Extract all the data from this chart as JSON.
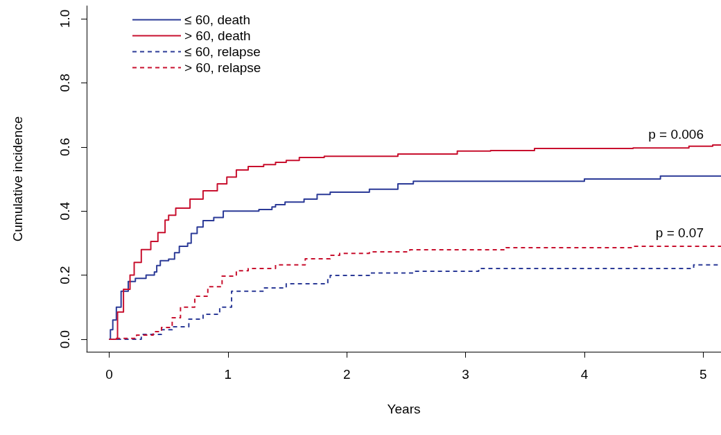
{
  "chart_data": {
    "type": "step",
    "xlabel": "Years",
    "ylabel": "Cumulative incidence",
    "xlim": [
      -0.19,
      5.15
    ],
    "ylim": [
      -0.04,
      1.04
    ],
    "xticks": [
      0,
      1,
      2,
      3,
      4,
      5
    ],
    "yticks": [
      {
        "value": 0,
        "label": "0.0"
      },
      {
        "value": 0.2,
        "label": "0.2"
      },
      {
        "value": 0.4,
        "label": "0.4"
      },
      {
        "value": 0.6,
        "label": "0.6"
      },
      {
        "value": 0.8,
        "label": "0.8"
      },
      {
        "value": 1,
        "label": "1.0"
      }
    ],
    "grid": false,
    "legend": "top left",
    "marker": "none",
    "series": [
      {
        "name": "≤ 60, death",
        "color": "#2b3a97",
        "line_style": "solid",
        "x": [
          0,
          0.01,
          0.03,
          0.06,
          0.1,
          0.16,
          0.22,
          0.31,
          0.38,
          0.4,
          0.43,
          0.5,
          0.55,
          0.59,
          0.66,
          0.69,
          0.74,
          0.79,
          0.88,
          0.96,
          1.26,
          1.37,
          1.4,
          1.48,
          1.64,
          1.75,
          1.86,
          2.19,
          2.43,
          2.56,
          4.0,
          4.64,
          5.15
        ],
        "values": [
          0,
          0.03,
          0.06,
          0.1,
          0.15,
          0.18,
          0.19,
          0.2,
          0.21,
          0.23,
          0.245,
          0.25,
          0.27,
          0.29,
          0.3,
          0.33,
          0.35,
          0.37,
          0.38,
          0.4,
          0.405,
          0.413,
          0.42,
          0.428,
          0.437,
          0.452,
          0.459,
          0.468,
          0.485,
          0.493,
          0.5,
          0.509,
          0.509
        ]
      },
      {
        "name": "> 60, death",
        "color": "#c8102e",
        "line_style": "solid",
        "x": [
          0,
          0.07,
          0.12,
          0.175,
          0.21,
          0.27,
          0.35,
          0.41,
          0.47,
          0.5,
          0.56,
          0.68,
          0.79,
          0.91,
          0.99,
          1.07,
          1.17,
          1.3,
          1.4,
          1.49,
          1.6,
          1.81,
          2.43,
          2.93,
          3.21,
          3.58,
          4.41,
          4.88,
          5.08,
          5.15
        ],
        "values": [
          0,
          0.085,
          0.156,
          0.2,
          0.24,
          0.28,
          0.305,
          0.333,
          0.372,
          0.387,
          0.409,
          0.437,
          0.463,
          0.485,
          0.506,
          0.528,
          0.539,
          0.545,
          0.552,
          0.558,
          0.567,
          0.571,
          0.578,
          0.587,
          0.589,
          0.595,
          0.597,
          0.602,
          0.606,
          0.606
        ]
      },
      {
        "name": "≤ 60, relapse",
        "color": "#2b3a97",
        "line_style": "dashed",
        "x": [
          0,
          0.1,
          0.27,
          0.44,
          0.53,
          0.67,
          0.79,
          0.93,
          1.03,
          1.3,
          1.49,
          1.84,
          1.86,
          2.19,
          2.57,
          3.11,
          4.92,
          5.15
        ],
        "values": [
          0,
          0,
          0.015,
          0.03,
          0.039,
          0.063,
          0.078,
          0.1,
          0.15,
          0.16,
          0.173,
          0.188,
          0.199,
          0.207,
          0.212,
          0.221,
          0.232,
          0.232
        ]
      },
      {
        "name": "> 60, relapse",
        "color": "#c8102e",
        "line_style": "dashed",
        "x": [
          0,
          0.03,
          0.23,
          0.37,
          0.44,
          0.53,
          0.6,
          0.72,
          0.83,
          0.95,
          1.07,
          1.17,
          1.4,
          1.65,
          1.86,
          1.94,
          2.19,
          2.53,
          3.34,
          4.41,
          5.15
        ],
        "values": [
          0,
          0.003,
          0.013,
          0.024,
          0.037,
          0.067,
          0.1,
          0.134,
          0.164,
          0.197,
          0.214,
          0.221,
          0.232,
          0.251,
          0.262,
          0.268,
          0.273,
          0.279,
          0.286,
          0.29,
          0.29
        ]
      }
    ],
    "annotations": [
      "p = 0.006",
      "p = 0.07"
    ]
  }
}
